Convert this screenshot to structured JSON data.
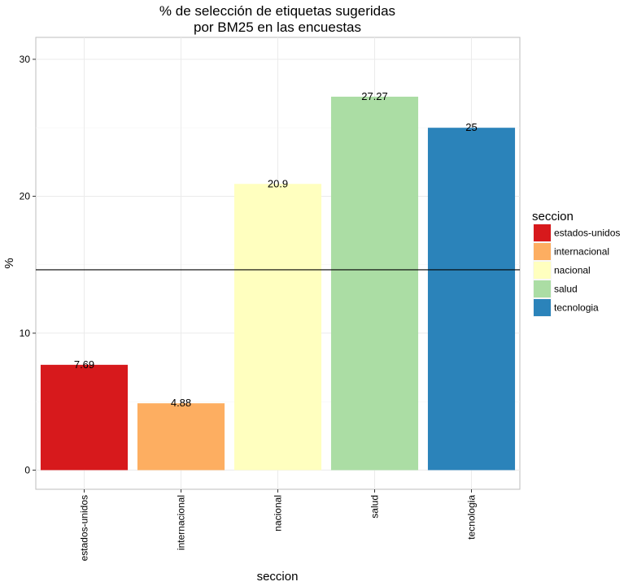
{
  "chart_data": {
    "type": "bar",
    "title_line1": "% de selección de etiquetas sugeridas",
    "title_line2": "por BM25 en las encuestas",
    "xlabel": "seccion",
    "ylabel": "%",
    "categories": [
      "estados-unidos",
      "internacional",
      "nacional",
      "salud",
      "tecnologia"
    ],
    "values": [
      7.69,
      4.88,
      20.9,
      27.27,
      25
    ],
    "value_labels": [
      "7.69",
      "4.88",
      "20.9",
      "27.27",
      "25"
    ],
    "colors": [
      "#d7191c",
      "#fdae61",
      "#ffffbf",
      "#abdda4",
      "#2b83ba"
    ],
    "ylim": [
      -1.4,
      31.6
    ],
    "yticks": [
      0,
      10,
      20,
      30
    ],
    "ytick_labels": [
      "0",
      "10",
      "20",
      "30"
    ],
    "hline": 14.63,
    "grid": true,
    "legend": {
      "title": "seccion",
      "position": "right",
      "entries": [
        "estados-unidos",
        "internacional",
        "nacional",
        "salud",
        "tecnologia"
      ]
    }
  }
}
